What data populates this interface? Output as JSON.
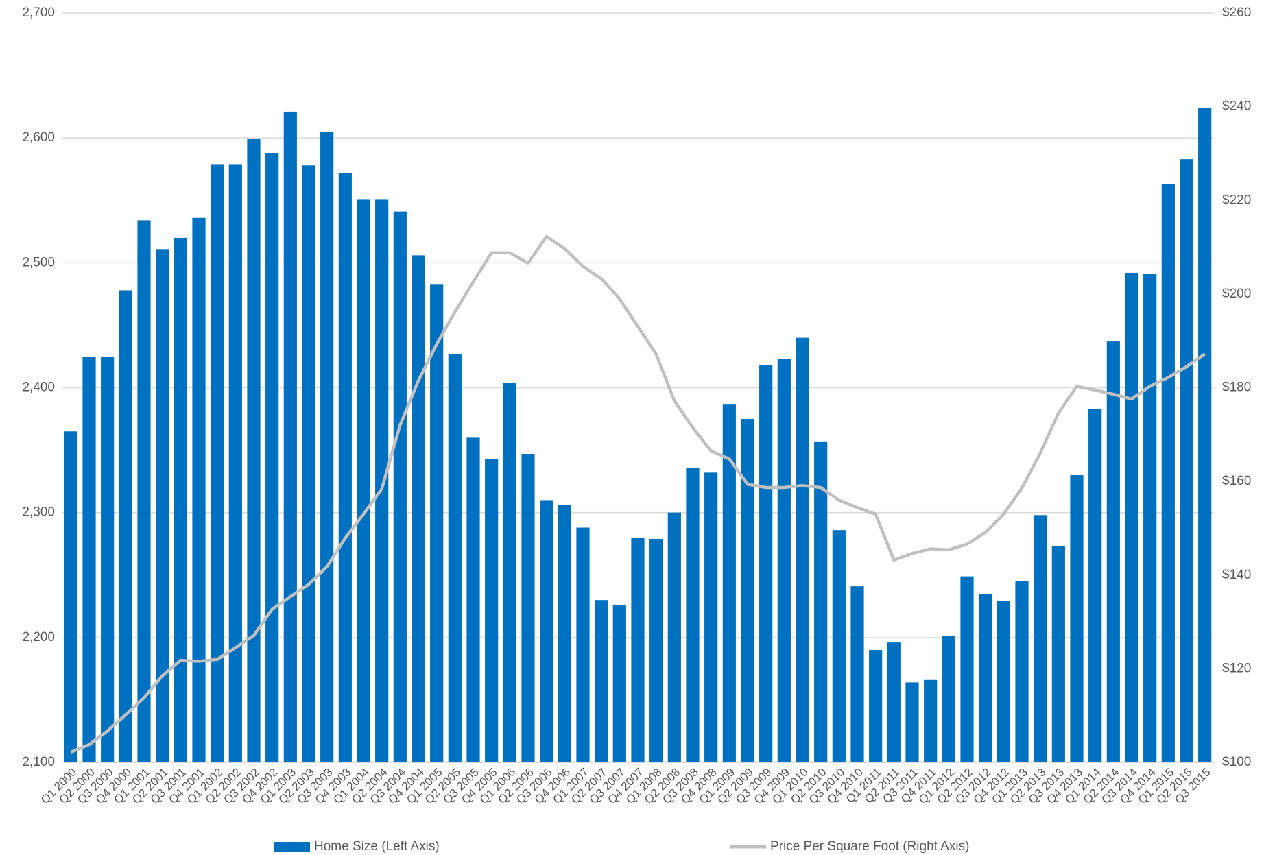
{
  "chart_data": {
    "type": "bar-line",
    "categories": [
      "Q1 2000",
      "Q2 2000",
      "Q3 2000",
      "Q4 2000",
      "Q1 2001",
      "Q2 2001",
      "Q3 2001",
      "Q4 2001",
      "Q1 2002",
      "Q2 2002",
      "Q3 2002",
      "Q4 2002",
      "Q1 2003",
      "Q2 2003",
      "Q3 2003",
      "Q4 2003",
      "Q1 2004",
      "Q2 2004",
      "Q3 2004",
      "Q4 2004",
      "Q1 2005",
      "Q2 2005",
      "Q3 2005",
      "Q4 2005",
      "Q1 2006",
      "Q2 2006",
      "Q3 2006",
      "Q4 2006",
      "Q1 2007",
      "Q2 2007",
      "Q3 2007",
      "Q4 2007",
      "Q1 2008",
      "Q2 2008",
      "Q3 2008",
      "Q4 2008",
      "Q1 2009",
      "Q2 2009",
      "Q3 2009",
      "Q4 2009",
      "Q1 2010",
      "Q2 2010",
      "Q3 2010",
      "Q4 2010",
      "Q1 2011",
      "Q2 2011",
      "Q3 2011",
      "Q4 2011",
      "Q1 2012",
      "Q2 2012",
      "Q3 2012",
      "Q4 2012",
      "Q1 2013",
      "Q2 2013",
      "Q3 2013",
      "Q4 2013",
      "Q1 2014",
      "Q2 2014",
      "Q3 2014",
      "Q4 2014",
      "Q1 2015",
      "Q2 2015",
      "Q3 2015"
    ],
    "series": [
      {
        "name": "Home Size (Left Axis)",
        "color": "#0070c0",
        "type": "bar",
        "values": [
          2365,
          2425,
          2425,
          2478,
          2534,
          2511,
          2520,
          2536,
          2579,
          2579,
          2599,
          2588,
          2621,
          2578,
          2605,
          2572,
          2551,
          2551,
          2541,
          2506,
          2483,
          2427,
          2360,
          2343,
          2404,
          2347,
          2310,
          2306,
          2288,
          2230,
          2226,
          2280,
          2279,
          2300,
          2336,
          2332,
          2387,
          2375,
          2418,
          2423,
          2440,
          2357,
          2286,
          2241,
          2190,
          2196,
          2164,
          2166,
          2201,
          2249,
          2235,
          2229,
          2245,
          2298,
          2273,
          2330,
          2383,
          2437,
          2492,
          2491,
          2563,
          2583,
          2624
        ]
      },
      {
        "name": "Price Per Square Foot (Right Axis)",
        "color": "#c0c0c0",
        "type": "line",
        "axis": "y2",
        "values": [
          102.2,
          103.8,
          106.7,
          110.2,
          113.8,
          118.5,
          121.8,
          121.6,
          122,
          124.5,
          127.1,
          132.7,
          135.4,
          138,
          141.8,
          147.9,
          153,
          158.4,
          172,
          181.5,
          189.3,
          196.2,
          202.6,
          208.8,
          208.8,
          206.6,
          212.3,
          209.7,
          205.9,
          203.3,
          199,
          193.1,
          187.2,
          177.2,
          171.5,
          166.5,
          164.8,
          159.4,
          158.7,
          158.7,
          159.1,
          158.7,
          156,
          154.4,
          153,
          143.2,
          144.6,
          145.6,
          145.4,
          146.6,
          149.1,
          153,
          158.6,
          166,
          174.6,
          180.3,
          179.5,
          178.6,
          177.6,
          180.3,
          182.2,
          184.5,
          187.2
        ]
      }
    ],
    "ylim": [
      2100,
      2700
    ],
    "yticks": [
      {
        "value": 2100,
        "label": "2,100"
      },
      {
        "value": 2200,
        "label": "2,200"
      },
      {
        "value": 2300,
        "label": "2,300"
      },
      {
        "value": 2400,
        "label": "2,400"
      },
      {
        "value": 2500,
        "label": "2,500"
      },
      {
        "value": 2600,
        "label": "2,600"
      },
      {
        "value": 2700,
        "label": "2,700"
      }
    ],
    "y2lim": [
      100,
      260
    ],
    "y2ticks": [
      {
        "value": 100,
        "label": "$100"
      },
      {
        "value": 120,
        "label": "$120"
      },
      {
        "value": 140,
        "label": "$140"
      },
      {
        "value": 160,
        "label": "$160"
      },
      {
        "value": 180,
        "label": "$180"
      },
      {
        "value": 200,
        "label": "$200"
      },
      {
        "value": 220,
        "label": "$220"
      },
      {
        "value": 240,
        "label": "$240"
      },
      {
        "value": 260,
        "label": "$260"
      }
    ],
    "grid": true,
    "legend": "bottom"
  }
}
